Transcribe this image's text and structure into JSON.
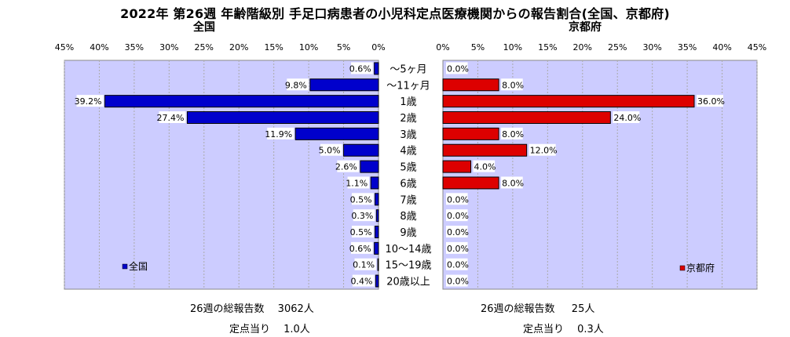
{
  "title": "2022年 第26週  年齢階級別 手足口病患者の小児科定点医療機関からの報告割合(全国、京都府)",
  "chart_data": [
    {
      "type": "bar",
      "orientation": "horizontal",
      "title": "全国",
      "direction": "right-to-left",
      "xlim": [
        0,
        45
      ],
      "ticks": [
        "45%",
        "40%",
        "35%",
        "30%",
        "25%",
        "20%",
        "15%",
        "10%",
        "5%",
        "0%"
      ],
      "tick_values": [
        45,
        40,
        35,
        30,
        25,
        20,
        15,
        10,
        5,
        0
      ],
      "categories": [
        "～5ヶ月",
        "～11ヶ月",
        "1歳",
        "2歳",
        "3歳",
        "4歳",
        "5歳",
        "6歳",
        "7歳",
        "8歳",
        "9歳",
        "10～14歳",
        "15～19歳",
        "20歳以上"
      ],
      "values": [
        0.6,
        9.8,
        39.2,
        27.4,
        11.9,
        5.0,
        2.6,
        1.1,
        0.5,
        0.3,
        0.5,
        0.6,
        0.1,
        0.4
      ],
      "value_labels": [
        "0.6%",
        "9.8%",
        "39.2%",
        "27.4%",
        "11.9%",
        "5.0%",
        "2.6%",
        "1.1%",
        "0.5%",
        "0.3%",
        "0.5%",
        "0.6%",
        "0.1%",
        "0.4%"
      ],
      "legend": "全国",
      "legend_position": "bottom-left",
      "bar_color": "#0000cc",
      "plot_background": "#ccccff",
      "grid": true
    },
    {
      "type": "bar",
      "orientation": "horizontal",
      "title": "京都府",
      "direction": "left-to-right",
      "xlim": [
        0,
        45
      ],
      "ticks": [
        "0%",
        "5%",
        "10%",
        "15%",
        "20%",
        "25%",
        "30%",
        "35%",
        "40%",
        "45%"
      ],
      "tick_values": [
        0,
        5,
        10,
        15,
        20,
        25,
        30,
        35,
        40,
        45
      ],
      "categories": [
        "～5ヶ月",
        "～11ヶ月",
        "1歳",
        "2歳",
        "3歳",
        "4歳",
        "5歳",
        "6歳",
        "7歳",
        "8歳",
        "9歳",
        "10～14歳",
        "15～19歳",
        "20歳以上"
      ],
      "values": [
        0.0,
        8.0,
        36.0,
        24.0,
        8.0,
        12.0,
        4.0,
        8.0,
        0.0,
        0.0,
        0.0,
        0.0,
        0.0,
        0.0
      ],
      "value_labels": [
        "0.0%",
        "8.0%",
        "36.0%",
        "24.0%",
        "8.0%",
        "12.0%",
        "4.0%",
        "8.0%",
        "0.0%",
        "0.0%",
        "0.0%",
        "0.0%",
        "0.0%",
        "0.0%"
      ],
      "legend": "京都府",
      "legend_position": "bottom-right",
      "bar_color": "#dd0000",
      "plot_background": "#ccccff",
      "grid": true
    }
  ],
  "summary": {
    "national_total": "26週の総報告数　 3062人",
    "national_per_site": "定点当り　 1.0人",
    "kyoto_total": "26週の総報告数　  25人",
    "kyoto_per_site": "定点当り　 0.3人"
  }
}
